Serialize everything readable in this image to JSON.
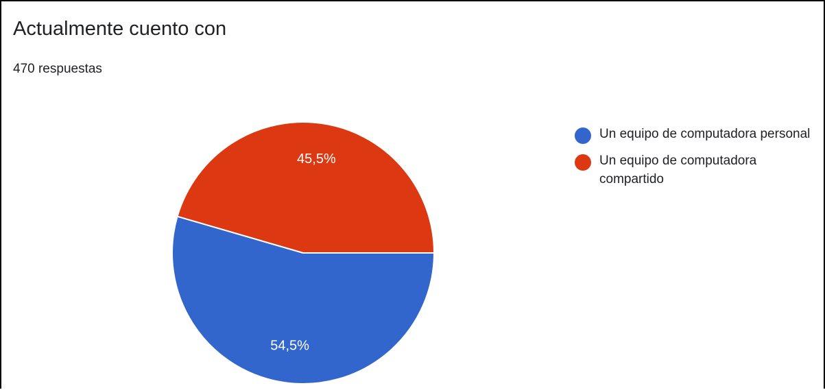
{
  "title": "Actualmente cuento con",
  "subtitle": "470 respuestas",
  "chart_data": {
    "type": "pie",
    "title": "Actualmente cuento con",
    "total_responses": 470,
    "slices": [
      {
        "label": "Un equipo de computadora personal",
        "value": 54.5,
        "display": "54,5%",
        "color": "#3366cc"
      },
      {
        "label": "Un equipo de computadora compartido",
        "value": 45.5,
        "display": "45,5%",
        "color": "#dc3912"
      }
    ],
    "legend": "right"
  }
}
